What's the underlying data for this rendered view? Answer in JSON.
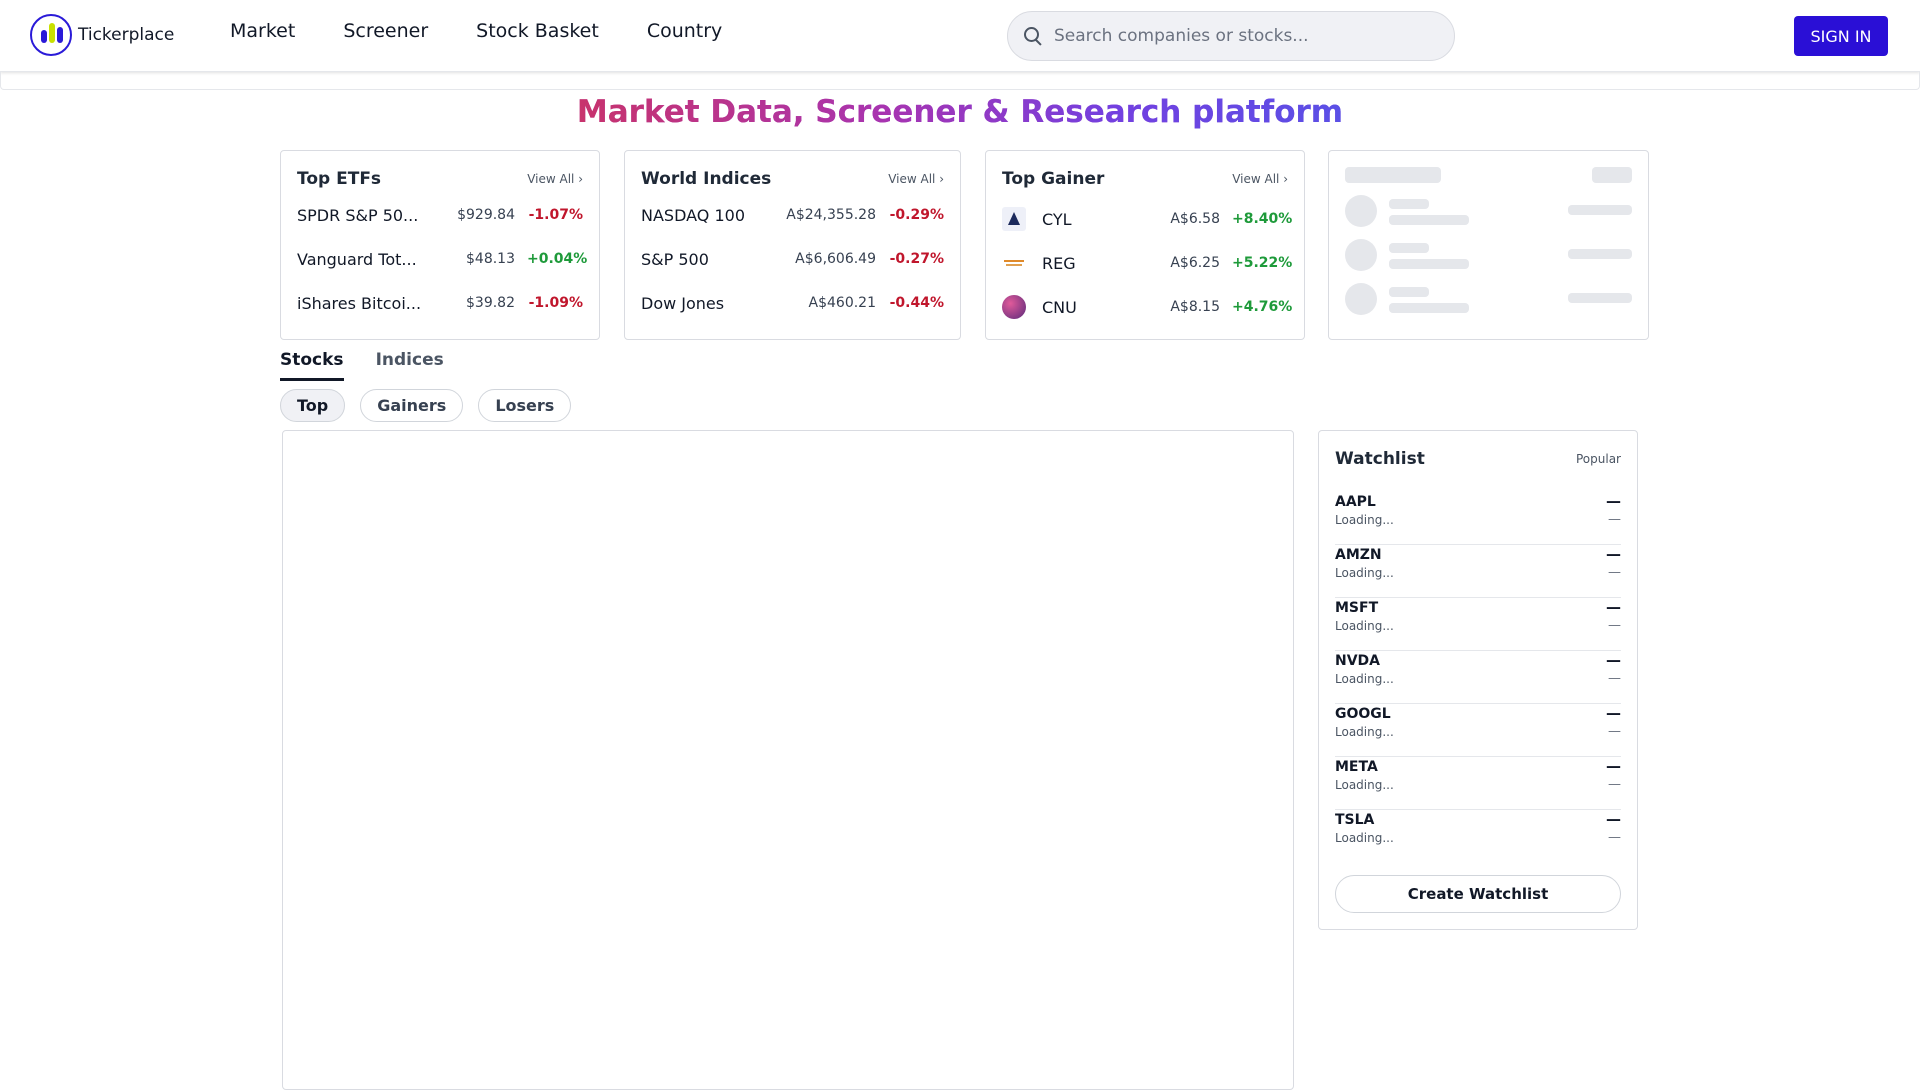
{
  "header": {
    "brand": "Tickerplace",
    "nav": [
      "Market",
      "Screener",
      "Stock Basket",
      "Country"
    ],
    "search_placeholder": "Search companies or stocks...",
    "signin_label": "SIGN IN"
  },
  "hero": {
    "title": "Market Data, Screener & Research platform"
  },
  "cards": {
    "etfs": {
      "title": "Top ETFs",
      "view_all": "View All ›",
      "rows": [
        {
          "name": "SPDR S&P 50...",
          "price": "$929.84",
          "change": "-1.07%"
        },
        {
          "name": "Vanguard Tot...",
          "price": "$48.13",
          "change": "+0.04%"
        },
        {
          "name": "iShares Bitcoi...",
          "price": "$39.82",
          "change": "-1.09%"
        }
      ]
    },
    "indices": {
      "title": "World Indices",
      "view_all": "View All ›",
      "rows": [
        {
          "name": "NASDAQ 100",
          "price": "A$24,355.28",
          "change": "-0.29%"
        },
        {
          "name": "S&P 500",
          "price": "A$6,606.49",
          "change": "-0.27%"
        },
        {
          "name": "Dow Jones",
          "price": "A$460.21",
          "change": "-0.44%"
        }
      ]
    },
    "gainers": {
      "title": "Top Gainer",
      "view_all": "View All ›",
      "rows": [
        {
          "symbol": "CYL",
          "price": "A$6.58",
          "change": "+8.40%"
        },
        {
          "symbol": "REG",
          "price": "A$6.25",
          "change": "+5.22%"
        },
        {
          "symbol": "CNU",
          "price": "A$8.15",
          "change": "+4.76%"
        }
      ]
    }
  },
  "tabs": [
    "Stocks",
    "Indices"
  ],
  "filters": [
    "Top",
    "Gainers",
    "Losers"
  ],
  "watchlist": {
    "title": "Watchlist",
    "badge": "Popular",
    "items": [
      {
        "symbol": "AAPL",
        "status": "Loading...",
        "value": "—",
        "change": "—"
      },
      {
        "symbol": "AMZN",
        "status": "Loading...",
        "value": "—",
        "change": "—"
      },
      {
        "symbol": "MSFT",
        "status": "Loading...",
        "value": "—",
        "change": "—"
      },
      {
        "symbol": "NVDA",
        "status": "Loading...",
        "value": "—",
        "change": "—"
      },
      {
        "symbol": "GOOGL",
        "status": "Loading...",
        "value": "—",
        "change": "—"
      },
      {
        "symbol": "META",
        "status": "Loading...",
        "value": "—",
        "change": "—"
      },
      {
        "symbol": "TSLA",
        "status": "Loading...",
        "value": "—",
        "change": "—"
      }
    ],
    "create_label": "Create Watchlist"
  },
  "colors": {
    "brand": "#2a0fd6",
    "negative": "#c0162c",
    "positive": "#1e9a3a"
  }
}
